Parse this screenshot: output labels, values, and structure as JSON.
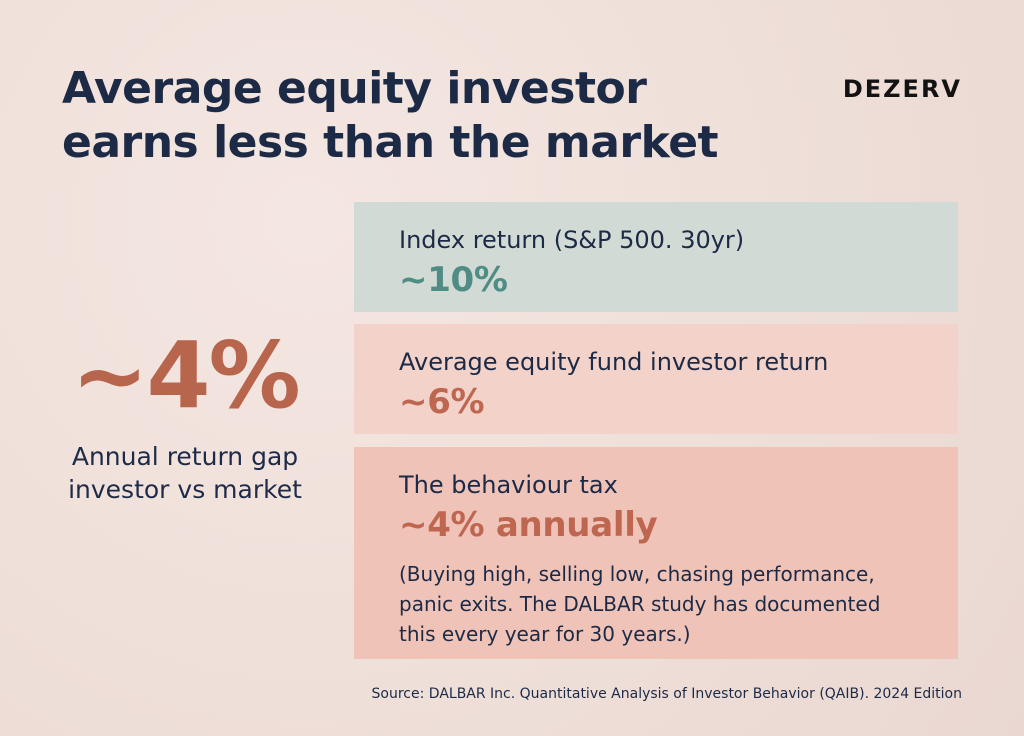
{
  "header": {
    "title_line_1": "Average equity investor",
    "title_line_2": "earns less than the market",
    "brand": "DEZERV"
  },
  "highlight": {
    "value": "~4%",
    "caption_line_1": "Annual return gap",
    "caption_line_2": "investor vs market",
    "color": "#b7654c"
  },
  "cards": [
    {
      "label": "Index return (S&P 500. 30yr)",
      "value": "~10%",
      "background": "#d1dad4",
      "value_color": "#4f8c84"
    },
    {
      "label": "Average equity fund investor return",
      "value": "~6%",
      "background": "#f2d2c9",
      "value_color": "#bf6650"
    },
    {
      "label": "The behaviour tax",
      "value": "~4% annually",
      "note": "(Buying high, selling low, chasing performance, panic exits. The DALBAR study has documented this every year for 30 years.)",
      "background": "#efc3b7",
      "value_color": "#bf6650"
    }
  ],
  "footer": {
    "source": "Source: DALBAR Inc. Quantitative Analysis of Investor Behavior (QAIB). 2024 Edition"
  },
  "colors": {
    "page_background": "#f0e2dc",
    "text_navy": "#1c2a45"
  }
}
